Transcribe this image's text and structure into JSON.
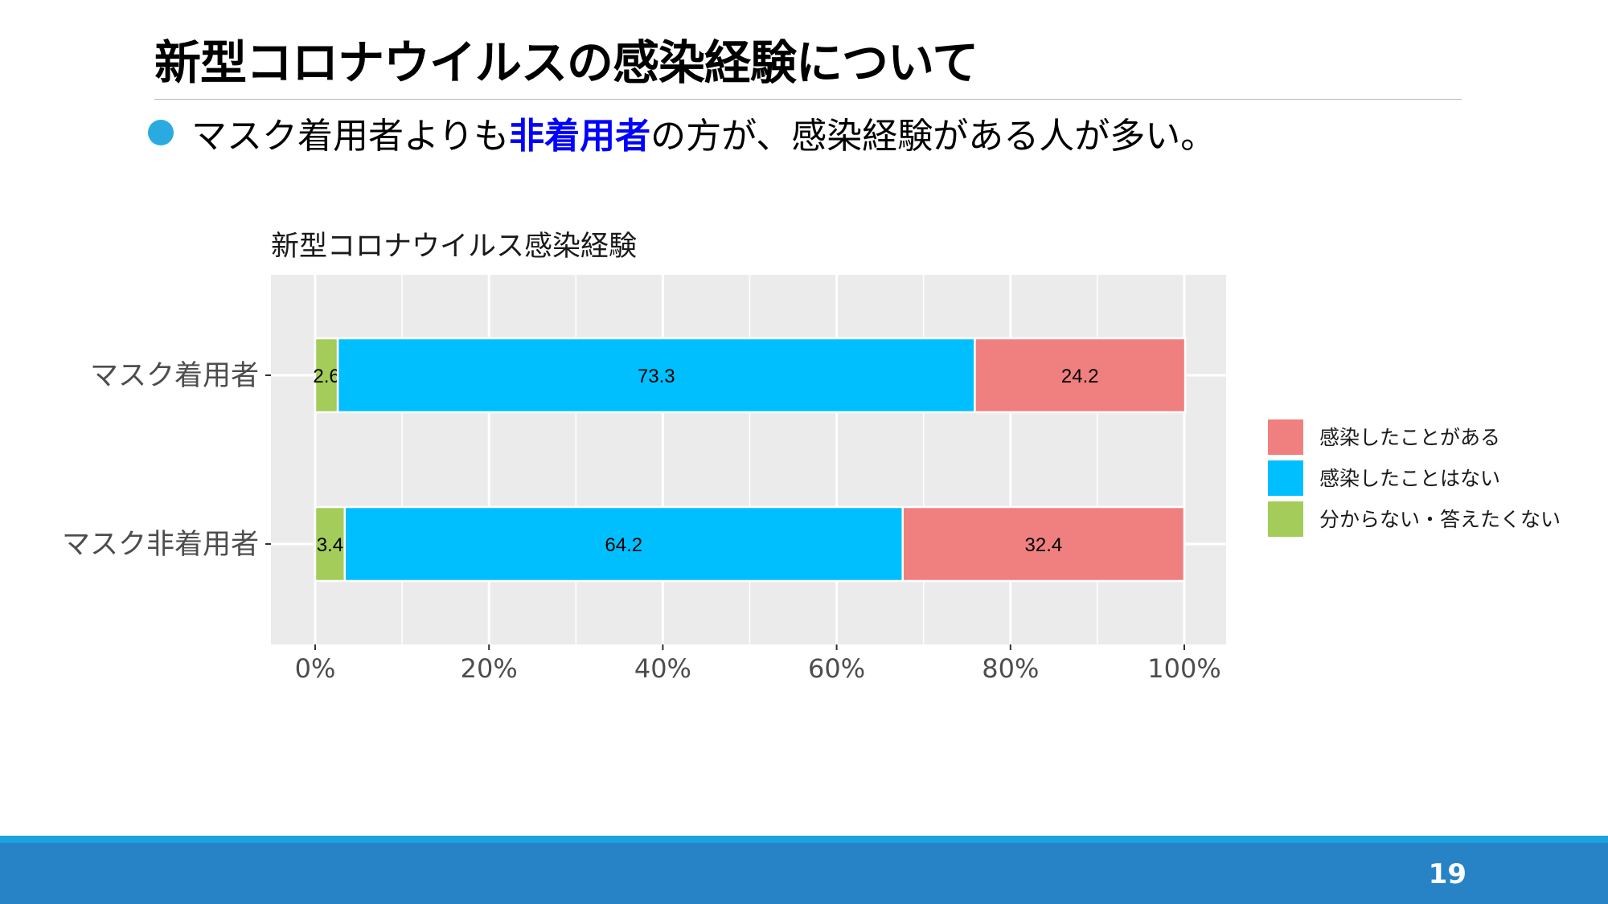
{
  "slide": {
    "title": "新型コロナウイルスの感染経験について",
    "bullet_pre": "マスク着用者よりも",
    "bullet_highlight": "非着用者",
    "bullet_post": "の方が、感染経験がある人が多い。",
    "page_number": "19"
  },
  "colors": {
    "accent_bullet": "#29abe2",
    "highlight_text": "#0000ff",
    "footer_bar": "#2783c6",
    "footer_stripe": "#1aa3df"
  },
  "chart_data": {
    "type": "bar",
    "orientation": "horizontal",
    "stacked": true,
    "title": "新型コロナウイルス感染経験",
    "xlabel": "",
    "ylabel": "",
    "xlim": [
      0,
      100
    ],
    "x_ticks": [
      "0%",
      "20%",
      "40%",
      "60%",
      "80%",
      "100%"
    ],
    "categories": [
      "マスク着用者",
      "マスク非着用者"
    ],
    "series": [
      {
        "name": "分からない・答えたくない",
        "color": "#a3cc5a",
        "values": [
          2.6,
          3.4
        ]
      },
      {
        "name": "感染したことはない",
        "color": "#00bfff",
        "values": [
          73.3,
          64.2
        ]
      },
      {
        "name": "感染したことがある",
        "color": "#f08080",
        "values": [
          24.2,
          32.4
        ]
      }
    ],
    "legend": {
      "position": "right",
      "order": [
        "感染したことがある",
        "感染したことはない",
        "分からない・答えたくない"
      ]
    },
    "grid": true,
    "panel_background": "#ebebeb"
  }
}
